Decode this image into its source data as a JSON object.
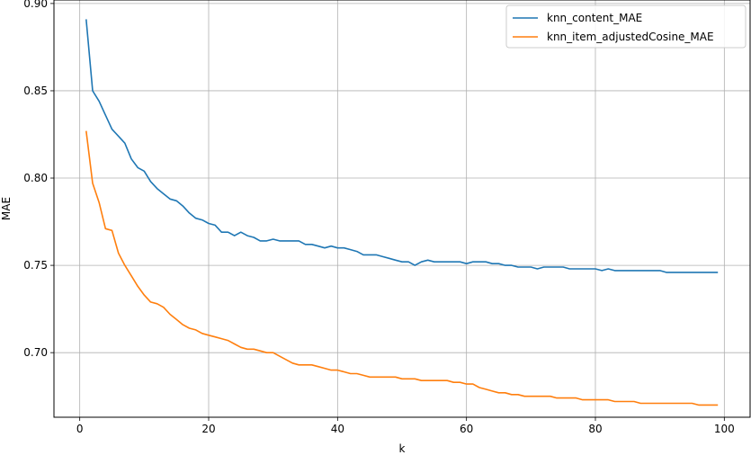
{
  "chart_data": {
    "type": "line",
    "xlabel": "k",
    "ylabel": "MAE",
    "xlim": [
      -4,
      104
    ],
    "ylim": [
      0.663,
      0.902
    ],
    "x_ticks": [
      0,
      20,
      40,
      60,
      80,
      100
    ],
    "y_ticks": [
      0.7,
      0.75,
      0.8,
      0.85,
      0.9
    ],
    "x_tick_labels": [
      "0",
      "20",
      "40",
      "60",
      "80",
      "100"
    ],
    "y_tick_labels": [
      "0.70",
      "0.75",
      "0.80",
      "0.85",
      "0.90"
    ],
    "grid": true,
    "legend_position": "top-right",
    "x": [
      1,
      2,
      3,
      4,
      5,
      6,
      7,
      8,
      9,
      10,
      11,
      12,
      13,
      14,
      15,
      16,
      17,
      18,
      19,
      20,
      21,
      22,
      23,
      24,
      25,
      26,
      27,
      28,
      29,
      30,
      31,
      32,
      33,
      34,
      35,
      36,
      37,
      38,
      39,
      40,
      41,
      42,
      43,
      44,
      45,
      46,
      47,
      48,
      49,
      50,
      51,
      52,
      53,
      54,
      55,
      56,
      57,
      58,
      59,
      60,
      61,
      62,
      63,
      64,
      65,
      66,
      67,
      68,
      69,
      70,
      71,
      72,
      73,
      74,
      75,
      76,
      77,
      78,
      79,
      80,
      81,
      82,
      83,
      84,
      85,
      86,
      87,
      88,
      89,
      90,
      91,
      92,
      93,
      94,
      95,
      96,
      97,
      98,
      99
    ],
    "series": [
      {
        "name": "knn_content_MAE",
        "color": "#1f77b4",
        "values": [
          0.891,
          0.85,
          0.844,
          0.836,
          0.828,
          0.824,
          0.82,
          0.811,
          0.806,
          0.804,
          0.798,
          0.794,
          0.791,
          0.788,
          0.787,
          0.784,
          0.78,
          0.777,
          0.776,
          0.774,
          0.773,
          0.769,
          0.769,
          0.767,
          0.769,
          0.767,
          0.766,
          0.764,
          0.764,
          0.765,
          0.764,
          0.764,
          0.764,
          0.764,
          0.762,
          0.762,
          0.761,
          0.76,
          0.761,
          0.76,
          0.76,
          0.759,
          0.758,
          0.756,
          0.756,
          0.756,
          0.755,
          0.754,
          0.753,
          0.752,
          0.752,
          0.75,
          0.752,
          0.753,
          0.752,
          0.752,
          0.752,
          0.752,
          0.752,
          0.751,
          0.752,
          0.752,
          0.752,
          0.751,
          0.751,
          0.75,
          0.75,
          0.749,
          0.749,
          0.749,
          0.748,
          0.749,
          0.749,
          0.749,
          0.749,
          0.748,
          0.748,
          0.748,
          0.748,
          0.748,
          0.747,
          0.748,
          0.747,
          0.747,
          0.747,
          0.747,
          0.747,
          0.747,
          0.747,
          0.747,
          0.746,
          0.746,
          0.746,
          0.746,
          0.746,
          0.746,
          0.746,
          0.746,
          0.746
        ]
      },
      {
        "name": "knn_item_adjustedCosine_MAE",
        "color": "#ff7f0e",
        "values": [
          0.827,
          0.797,
          0.786,
          0.771,
          0.77,
          0.757,
          0.75,
          0.744,
          0.738,
          0.733,
          0.729,
          0.728,
          0.726,
          0.722,
          0.719,
          0.716,
          0.714,
          0.713,
          0.711,
          0.71,
          0.709,
          0.708,
          0.707,
          0.705,
          0.703,
          0.702,
          0.702,
          0.701,
          0.7,
          0.7,
          0.698,
          0.696,
          0.694,
          0.693,
          0.693,
          0.693,
          0.692,
          0.691,
          0.69,
          0.69,
          0.689,
          0.688,
          0.688,
          0.687,
          0.686,
          0.686,
          0.686,
          0.686,
          0.686,
          0.685,
          0.685,
          0.685,
          0.684,
          0.684,
          0.684,
          0.684,
          0.684,
          0.683,
          0.683,
          0.682,
          0.682,
          0.68,
          0.679,
          0.678,
          0.677,
          0.677,
          0.676,
          0.676,
          0.675,
          0.675,
          0.675,
          0.675,
          0.675,
          0.674,
          0.674,
          0.674,
          0.674,
          0.673,
          0.673,
          0.673,
          0.673,
          0.673,
          0.672,
          0.672,
          0.672,
          0.672,
          0.671,
          0.671,
          0.671,
          0.671,
          0.671,
          0.671,
          0.671,
          0.671,
          0.671,
          0.67,
          0.67,
          0.67,
          0.67
        ]
      }
    ]
  }
}
